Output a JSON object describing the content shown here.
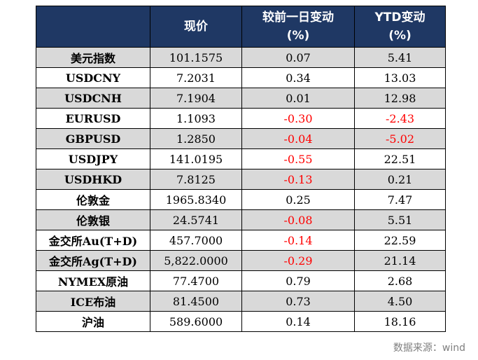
{
  "headers": {
    "name": "",
    "price": "现价",
    "daily_line1": "较前一日变动",
    "daily_line2": "(%)",
    "ytd_line1": "YTD变动",
    "ytd_line2": "(%)"
  },
  "rows": [
    {
      "name": "美元指数",
      "price": "101.1575",
      "daily": "0.07",
      "ytd": "5.41"
    },
    {
      "name": "USDCNY",
      "price": "7.2031",
      "daily": "0.34",
      "ytd": "13.03"
    },
    {
      "name": "USDCNH",
      "price": "7.1904",
      "daily": "0.01",
      "ytd": "12.98"
    },
    {
      "name": "EURUSD",
      "price": "1.1093",
      "daily": "-0.30",
      "ytd": "-2.43"
    },
    {
      "name": "GBPUSD",
      "price": "1.2850",
      "daily": "-0.04",
      "ytd": "-5.02"
    },
    {
      "name": "USDJPY",
      "price": "141.0195",
      "daily": "-0.55",
      "ytd": "22.51"
    },
    {
      "name": "USDHKD",
      "price": "7.8125",
      "daily": "-0.13",
      "ytd": "0.21"
    },
    {
      "name": "伦敦金",
      "price": "1965.8340",
      "daily": "0.25",
      "ytd": "7.47"
    },
    {
      "name": "伦敦银",
      "price": "24.5741",
      "daily": "-0.08",
      "ytd": "5.51"
    },
    {
      "name": "金交所Au(T+D)",
      "price": "457.7000",
      "daily": "-0.14",
      "ytd": "22.59"
    },
    {
      "name": "金交所Ag(T+D)",
      "price": "5,822.0000",
      "daily": "-0.29",
      "ytd": "21.14"
    },
    {
      "name": "NYMEX原油",
      "price": "77.4700",
      "daily": "0.79",
      "ytd": "2.68"
    },
    {
      "name": "ICE布油",
      "price": "81.4500",
      "daily": "0.73",
      "ytd": "4.50"
    },
    {
      "name": "沪油",
      "price": "589.6000",
      "daily": "0.14",
      "ytd": "18.16"
    }
  ],
  "colors": {
    "header_bg": "#1f3864",
    "shade_bg": "#d9d9d9",
    "negative": "#ff0000"
  },
  "source": "数据来源：wind"
}
